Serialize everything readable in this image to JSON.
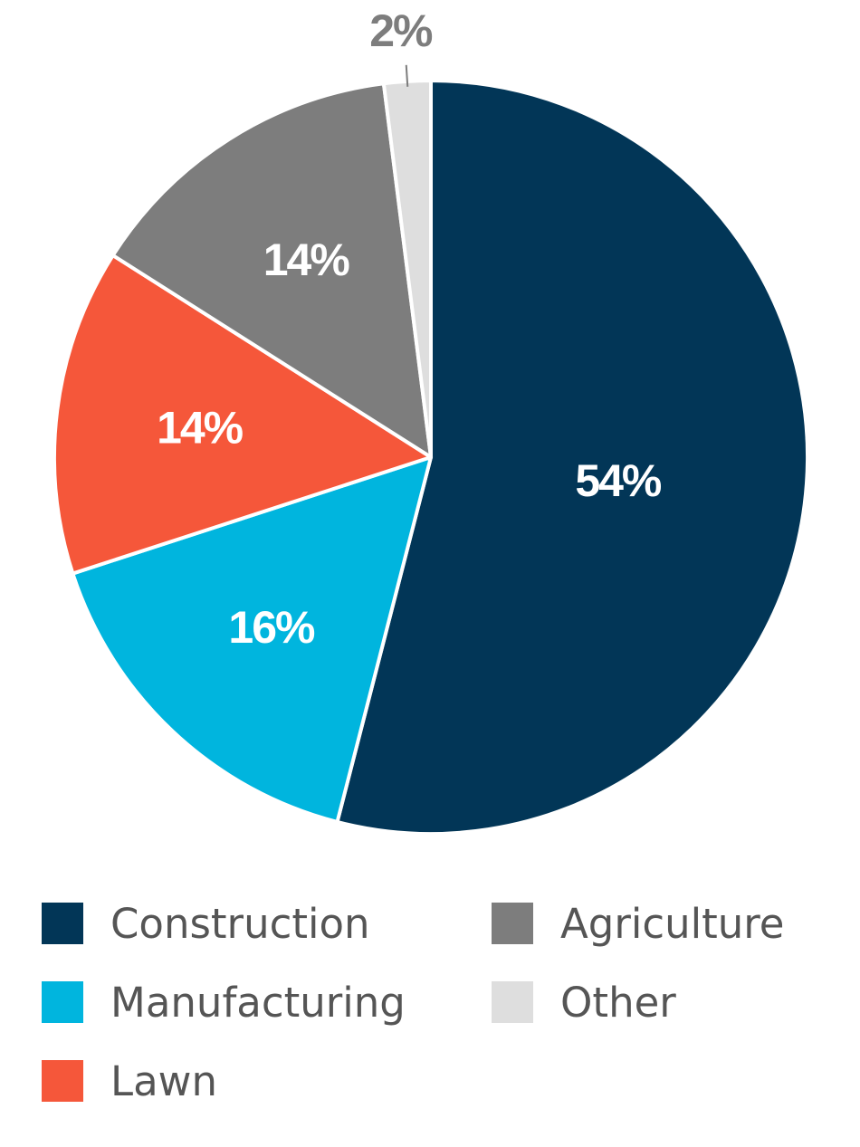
{
  "chart_data": {
    "type": "pie",
    "title": "",
    "slices": [
      {
        "name": "Construction",
        "value": 54,
        "label": "54%",
        "color": "#023657",
        "label_color": "#ffffff"
      },
      {
        "name": "Manufacturing",
        "value": 16,
        "label": "16%",
        "color": "#00b5de",
        "label_color": "#ffffff"
      },
      {
        "name": "Lawn",
        "value": 14,
        "label": "14%",
        "color": "#f5573a",
        "label_color": "#ffffff"
      },
      {
        "name": "Agriculture",
        "value": 14,
        "label": "14%",
        "color": "#7d7d7d",
        "label_color": "#ffffff"
      },
      {
        "name": "Other",
        "value": 2,
        "label": "2%",
        "color": "#dedede",
        "label_color": "#7d7d7d",
        "label_outside": true
      }
    ],
    "start": "top",
    "direction": "clockwise",
    "legend_placement": "bottom"
  },
  "legend": {
    "items": [
      {
        "label": "Construction",
        "color": "#023657"
      },
      {
        "label": "Manufacturing",
        "color": "#00b5de"
      },
      {
        "label": "Lawn",
        "color": "#f5573a"
      },
      {
        "label": "Agriculture",
        "color": "#7d7d7d"
      },
      {
        "label": "Other",
        "color": "#dedede"
      }
    ]
  }
}
